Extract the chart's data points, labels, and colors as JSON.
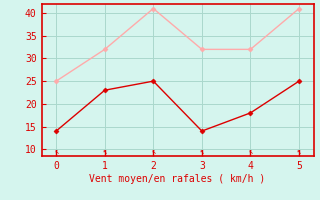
{
  "x": [
    0,
    1,
    2,
    3,
    4,
    5
  ],
  "y_moyen": [
    14,
    23,
    25,
    14,
    18,
    25
  ],
  "y_rafales": [
    25,
    32,
    41,
    32,
    32,
    41
  ],
  "line_color_moyen": "#dd0000",
  "line_color_rafales": "#ffaaaa",
  "marker_color_moyen": "#dd0000",
  "marker_color_rafales": "#ffaaaa",
  "background_color": "#d5f5ee",
  "grid_color": "#aad8cc",
  "xlabel": "Vent moyen/en rafales ( km/h )",
  "xlabel_color": "#dd0000",
  "ylabel_ticks": [
    10,
    15,
    20,
    25,
    30,
    35,
    40
  ],
  "ylim": [
    8.5,
    42
  ],
  "xlim": [
    -0.3,
    5.3
  ],
  "tick_color": "#dd0000",
  "axes_color": "#dd0000",
  "arrow_symbol": "↖"
}
